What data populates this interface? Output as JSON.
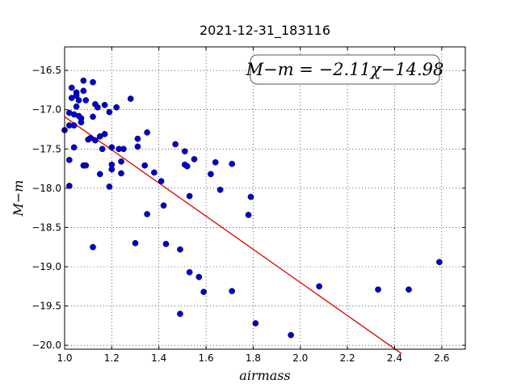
{
  "chart_data": {
    "type": "scatter",
    "title": "2021-12-31_183116",
    "xlabel": "airmass",
    "ylabel": "M−m",
    "xlim": [
      1.0,
      2.7
    ],
    "ylim": [
      -20.05,
      -16.2
    ],
    "y_inverted": true,
    "x_ticks": [
      1.0,
      1.2,
      1.4,
      1.6,
      1.8,
      2.0,
      2.2,
      2.4,
      2.6
    ],
    "x_tick_labels": [
      "1.0",
      "1.2",
      "1.4",
      "1.6",
      "1.8",
      "2.0",
      "2.2",
      "2.4",
      "2.6"
    ],
    "y_ticks": [
      -16.5,
      -17.0,
      -17.5,
      -18.0,
      -18.5,
      -19.0,
      -19.5,
      -20.0
    ],
    "y_tick_labels": [
      "−16.5",
      "−17.0",
      "−17.5",
      "−18.0",
      "−18.5",
      "−19.0",
      "−19.5",
      "−20.0"
    ],
    "grid": true,
    "annotation": "M−m = −2.11χ−14.98",
    "annotation_placement": "top-right",
    "point_color": "#0000cc",
    "line_color": "#dd0000",
    "fit_line": {
      "slope": -2.11,
      "intercept": -14.98,
      "x_range": [
        1.0,
        2.43
      ]
    },
    "points": [
      {
        "x": 1.0,
        "y": -17.26
      },
      {
        "x": 1.02,
        "y": -17.04
      },
      {
        "x": 1.02,
        "y": -17.2
      },
      {
        "x": 1.02,
        "y": -17.64
      },
      {
        "x": 1.02,
        "y": -17.97
      },
      {
        "x": 1.03,
        "y": -16.72
      },
      {
        "x": 1.03,
        "y": -16.85
      },
      {
        "x": 1.04,
        "y": -17.06
      },
      {
        "x": 1.04,
        "y": -17.2
      },
      {
        "x": 1.04,
        "y": -17.48
      },
      {
        "x": 1.05,
        "y": -16.78
      },
      {
        "x": 1.05,
        "y": -16.82
      },
      {
        "x": 1.05,
        "y": -16.96
      },
      {
        "x": 1.06,
        "y": -17.08
      },
      {
        "x": 1.06,
        "y": -16.88
      },
      {
        "x": 1.07,
        "y": -17.11
      },
      {
        "x": 1.07,
        "y": -17.16
      },
      {
        "x": 1.08,
        "y": -16.63
      },
      {
        "x": 1.08,
        "y": -16.76
      },
      {
        "x": 1.08,
        "y": -17.71
      },
      {
        "x": 1.09,
        "y": -16.88
      },
      {
        "x": 1.09,
        "y": -17.71
      },
      {
        "x": 1.1,
        "y": -17.38
      },
      {
        "x": 1.11,
        "y": -17.36
      },
      {
        "x": 1.12,
        "y": -16.65
      },
      {
        "x": 1.12,
        "y": -17.09
      },
      {
        "x": 1.13,
        "y": -16.93
      },
      {
        "x": 1.13,
        "y": -17.39
      },
      {
        "x": 1.12,
        "y": -18.75
      },
      {
        "x": 1.14,
        "y": -16.97
      },
      {
        "x": 1.15,
        "y": -17.34
      },
      {
        "x": 1.15,
        "y": -17.82
      },
      {
        "x": 1.16,
        "y": -17.5
      },
      {
        "x": 1.17,
        "y": -16.94
      },
      {
        "x": 1.17,
        "y": -17.31
      },
      {
        "x": 1.19,
        "y": -17.98
      },
      {
        "x": 1.19,
        "y": -17.03
      },
      {
        "x": 1.2,
        "y": -17.48
      },
      {
        "x": 1.2,
        "y": -17.7
      },
      {
        "x": 1.2,
        "y": -17.76
      },
      {
        "x": 1.22,
        "y": -16.97
      },
      {
        "x": 1.23,
        "y": -17.5
      },
      {
        "x": 1.24,
        "y": -17.66
      },
      {
        "x": 1.24,
        "y": -17.81
      },
      {
        "x": 1.25,
        "y": -17.5
      },
      {
        "x": 1.28,
        "y": -16.86
      },
      {
        "x": 1.3,
        "y": -18.7
      },
      {
        "x": 1.31,
        "y": -17.37
      },
      {
        "x": 1.31,
        "y": -17.47
      },
      {
        "x": 1.34,
        "y": -17.71
      },
      {
        "x": 1.35,
        "y": -17.29
      },
      {
        "x": 1.35,
        "y": -18.33
      },
      {
        "x": 1.38,
        "y": -17.8
      },
      {
        "x": 1.41,
        "y": -17.91
      },
      {
        "x": 1.42,
        "y": -18.22
      },
      {
        "x": 1.43,
        "y": -18.71
      },
      {
        "x": 1.47,
        "y": -17.44
      },
      {
        "x": 1.49,
        "y": -18.78
      },
      {
        "x": 1.49,
        "y": -19.6
      },
      {
        "x": 1.51,
        "y": -17.53
      },
      {
        "x": 1.51,
        "y": -17.7
      },
      {
        "x": 1.52,
        "y": -17.72
      },
      {
        "x": 1.53,
        "y": -19.07
      },
      {
        "x": 1.53,
        "y": -18.1
      },
      {
        "x": 1.55,
        "y": -17.63
      },
      {
        "x": 1.57,
        "y": -19.13
      },
      {
        "x": 1.59,
        "y": -19.32
      },
      {
        "x": 1.62,
        "y": -17.82
      },
      {
        "x": 1.64,
        "y": -17.67
      },
      {
        "x": 1.66,
        "y": -18.02
      },
      {
        "x": 1.71,
        "y": -17.69
      },
      {
        "x": 1.71,
        "y": -19.31
      },
      {
        "x": 1.78,
        "y": -18.34
      },
      {
        "x": 1.79,
        "y": -18.11
      },
      {
        "x": 1.81,
        "y": -19.72
      },
      {
        "x": 1.96,
        "y": -19.87
      },
      {
        "x": 2.08,
        "y": -19.25
      },
      {
        "x": 2.33,
        "y": -19.29
      },
      {
        "x": 2.46,
        "y": -19.29
      },
      {
        "x": 2.59,
        "y": -18.94
      }
    ]
  }
}
